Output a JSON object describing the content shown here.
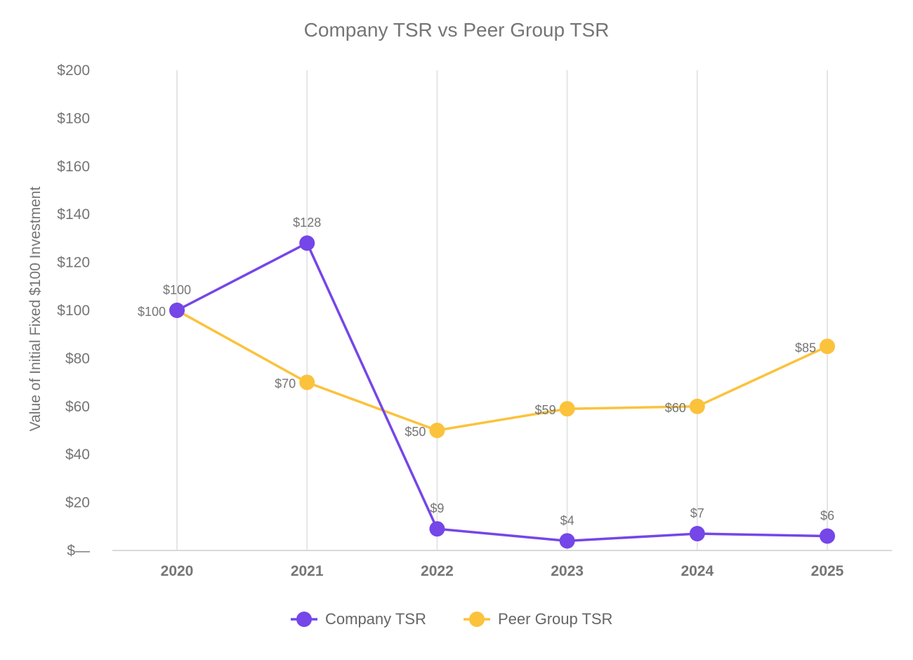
{
  "chart_data": {
    "type": "line",
    "title": "Company TSR vs Peer Group TSR",
    "ylabel": "Value of Initial Fixed $100 Investment",
    "xlabel": "",
    "categories": [
      "2020",
      "2021",
      "2022",
      "2023",
      "2024",
      "2025"
    ],
    "ylim": [
      0,
      200
    ],
    "yticks": [
      0,
      20,
      40,
      60,
      80,
      100,
      120,
      140,
      160,
      180,
      200
    ],
    "ytick_labels": [
      "$—",
      "$20",
      "$40",
      "$60",
      "$80",
      "$100",
      "$120",
      "$140",
      "$160",
      "$180",
      "$200"
    ],
    "grid": "vertical",
    "legend": "bottom-center",
    "series": [
      {
        "name": "Company TSR",
        "color": "#7546e8",
        "values": [
          100,
          128,
          9,
          4,
          7,
          6
        ],
        "labels": [
          "$100",
          "$128",
          "$9",
          "$4",
          "$7",
          "$6"
        ],
        "label_position": "above"
      },
      {
        "name": "Peer Group TSR",
        "color": "#fbc23c",
        "values": [
          100,
          70,
          50,
          59,
          60,
          85
        ],
        "labels": [
          "$100",
          "$70",
          "$50",
          "$59",
          "$60",
          "$85"
        ],
        "label_position": "left"
      }
    ]
  }
}
